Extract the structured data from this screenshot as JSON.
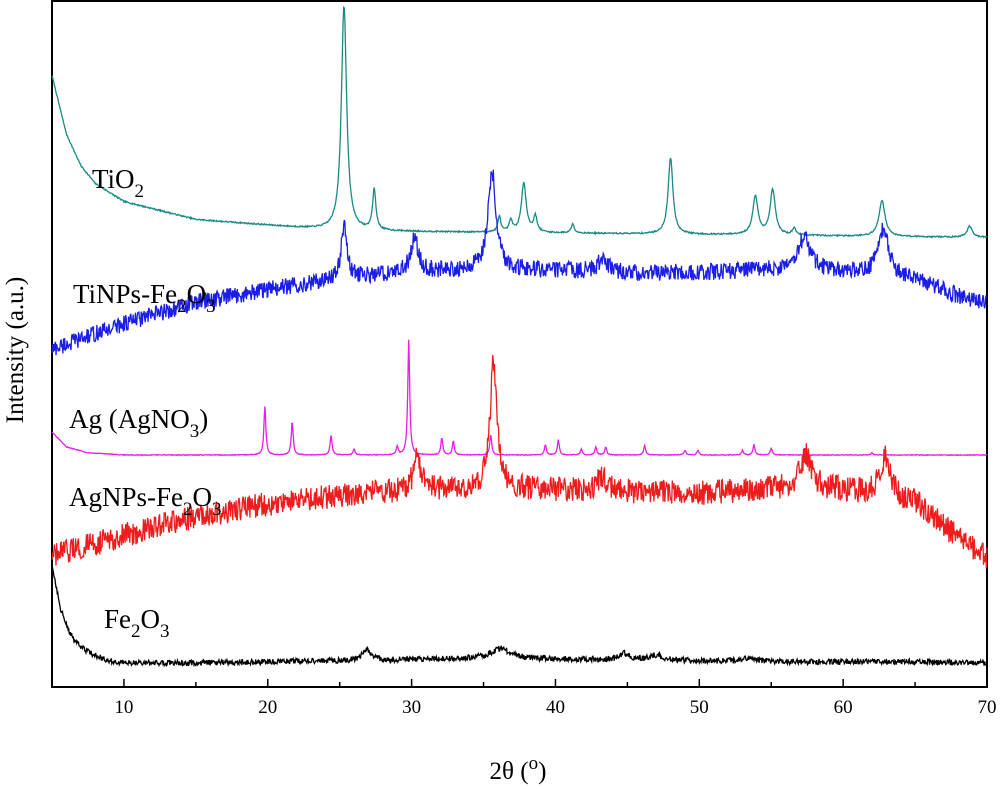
{
  "chart_data": {
    "type": "line",
    "xlabel": {
      "prefix": "2θ (",
      "sup": "o",
      "suffix": ")"
    },
    "ylabel": "Intensity (a.u.)",
    "xlim": [
      5,
      70
    ],
    "xticks": [
      10,
      20,
      30,
      40,
      50,
      60,
      70
    ],
    "yticks_shown": false,
    "grid": false,
    "legend": "none (labels placed beside each curve)",
    "series": [
      {
        "name": "TiO2",
        "label_parts": [
          {
            "t": "TiO"
          },
          {
            "t": "2",
            "sub": true
          }
        ],
        "color": "#1a8a84",
        "baseline": [
          [
            5,
            0.74
          ],
          [
            6,
            0.48
          ],
          [
            7,
            0.34
          ],
          [
            8,
            0.26
          ],
          [
            10,
            0.18
          ],
          [
            15,
            0.1
          ],
          [
            25,
            0.05
          ],
          [
            40,
            0.04
          ],
          [
            70,
            0.02
          ]
        ],
        "peaks": [
          [
            25.3,
            1.0,
            0.22
          ],
          [
            27.4,
            0.18,
            0.14
          ],
          [
            36.1,
            0.07,
            0.12
          ],
          [
            36.9,
            0.05,
            0.14
          ],
          [
            37.8,
            0.22,
            0.2
          ],
          [
            38.6,
            0.07,
            0.15
          ],
          [
            41.2,
            0.04,
            0.13
          ],
          [
            48.0,
            0.34,
            0.2
          ],
          [
            53.9,
            0.17,
            0.22
          ],
          [
            55.1,
            0.2,
            0.22
          ],
          [
            56.6,
            0.03,
            0.15
          ],
          [
            62.7,
            0.16,
            0.25
          ],
          [
            68.8,
            0.05,
            0.22
          ]
        ],
        "noise": 0.006
      },
      {
        "name": "TiNPs-Fe2O3",
        "label_parts": [
          {
            "t": "TiNPs-Fe"
          },
          {
            "t": "2",
            "sub": true
          },
          {
            "t": "O"
          },
          {
            "t": "3",
            "sub": true
          }
        ],
        "color": "#1a1ee6",
        "baseline": [
          [
            5,
            0.02
          ],
          [
            6,
            0.06
          ],
          [
            10,
            0.22
          ],
          [
            15,
            0.38
          ],
          [
            20,
            0.48
          ],
          [
            25,
            0.56
          ],
          [
            30,
            0.62
          ],
          [
            35,
            0.63
          ],
          [
            40,
            0.63
          ],
          [
            45,
            0.61
          ],
          [
            50,
            0.61
          ],
          [
            55,
            0.63
          ],
          [
            60,
            0.62
          ],
          [
            65,
            0.56
          ],
          [
            68,
            0.43
          ],
          [
            70,
            0.37
          ]
        ],
        "peaks": [
          [
            25.3,
            0.4,
            0.25
          ],
          [
            30.2,
            0.26,
            0.3
          ],
          [
            35.6,
            0.75,
            0.35
          ],
          [
            43.3,
            0.1,
            0.4
          ],
          [
            57.3,
            0.26,
            0.5
          ],
          [
            62.8,
            0.35,
            0.45
          ]
        ],
        "noise": 0.13
      },
      {
        "name": "Ag (AgNO3)",
        "label_parts": [
          {
            "t": "Ag (AgNO"
          },
          {
            "t": "3",
            "sub": true
          },
          {
            "t": ")"
          }
        ],
        "color": "#e61ee6",
        "baseline": [
          [
            5,
            0.2
          ],
          [
            6,
            0.07
          ],
          [
            7.5,
            0.02
          ],
          [
            10,
            0.0
          ],
          [
            70,
            0.0
          ]
        ],
        "peaks": [
          [
            19.8,
            0.42,
            0.08
          ],
          [
            21.7,
            0.29,
            0.08
          ],
          [
            24.4,
            0.17,
            0.08
          ],
          [
            26.0,
            0.05,
            0.08
          ],
          [
            29.0,
            0.07,
            0.08
          ],
          [
            29.8,
            1.0,
            0.08
          ],
          [
            32.1,
            0.15,
            0.08
          ],
          [
            32.9,
            0.12,
            0.08
          ],
          [
            35.5,
            0.18,
            0.08
          ],
          [
            39.3,
            0.09,
            0.08
          ],
          [
            40.2,
            0.13,
            0.08
          ],
          [
            41.8,
            0.05,
            0.08
          ],
          [
            42.8,
            0.07,
            0.08
          ],
          [
            43.5,
            0.07,
            0.08
          ],
          [
            46.2,
            0.08,
            0.08
          ],
          [
            49.0,
            0.04,
            0.08
          ],
          [
            49.9,
            0.04,
            0.08
          ],
          [
            53.0,
            0.04,
            0.08
          ],
          [
            53.8,
            0.09,
            0.08
          ],
          [
            55.0,
            0.06,
            0.08
          ],
          [
            62.0,
            0.02,
            0.08
          ]
        ],
        "noise": 0.006
      },
      {
        "name": "AgNPs-Fe2O3",
        "label_parts": [
          {
            "t": "AgNPs-Fe"
          },
          {
            "t": "2",
            "sub": true
          },
          {
            "t": "O"
          },
          {
            "t": "3",
            "sub": true
          }
        ],
        "color": "#ee1c1c",
        "baseline": [
          [
            5,
            0.02
          ],
          [
            7,
            0.08
          ],
          [
            10,
            0.16
          ],
          [
            15,
            0.28
          ],
          [
            20,
            0.36
          ],
          [
            25,
            0.42
          ],
          [
            30,
            0.45
          ],
          [
            35,
            0.46
          ],
          [
            40,
            0.45
          ],
          [
            45,
            0.44
          ],
          [
            50,
            0.43
          ],
          [
            55,
            0.46
          ],
          [
            60,
            0.45
          ],
          [
            65,
            0.37
          ],
          [
            67.5,
            0.18
          ],
          [
            70,
            0.02
          ]
        ],
        "peaks": [
          [
            30.4,
            0.22,
            0.3
          ],
          [
            35.7,
            0.82,
            0.3
          ],
          [
            43.2,
            0.1,
            0.4
          ],
          [
            57.4,
            0.22,
            0.5
          ],
          [
            62.9,
            0.26,
            0.45
          ]
        ],
        "noise": 0.16
      },
      {
        "name": "Fe2O3",
        "label_parts": [
          {
            "t": "Fe"
          },
          {
            "t": "2",
            "sub": true
          },
          {
            "t": "O"
          },
          {
            "t": "3",
            "sub": true
          }
        ],
        "color": "#000000",
        "baseline": [
          [
            5,
            1.0
          ],
          [
            5.6,
            0.58
          ],
          [
            6.2,
            0.34
          ],
          [
            7,
            0.2
          ],
          [
            8,
            0.12
          ],
          [
            9,
            0.07
          ],
          [
            10,
            0.05
          ],
          [
            15,
            0.05
          ],
          [
            20,
            0.06
          ],
          [
            25,
            0.07
          ],
          [
            35,
            0.09
          ],
          [
            45,
            0.08
          ],
          [
            55,
            0.06
          ],
          [
            65,
            0.06
          ],
          [
            70,
            0.05
          ]
        ],
        "peaks": [
          [
            26.9,
            0.1,
            0.4
          ],
          [
            36.2,
            0.1,
            0.8
          ],
          [
            44.8,
            0.06,
            0.4
          ],
          [
            47.0,
            0.05,
            0.5
          ],
          [
            53.5,
            0.04,
            0.5
          ]
        ],
        "noise": 0.055
      }
    ]
  }
}
